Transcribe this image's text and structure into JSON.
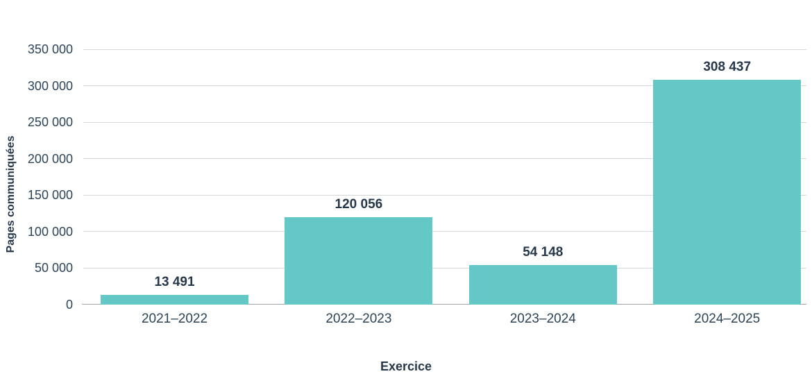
{
  "chart_data": {
    "type": "bar",
    "title": "",
    "categories": [
      "2021–2022",
      "2022–2023",
      "2023–2024",
      "2024–2025"
    ],
    "values": [
      13491,
      120056,
      54148,
      308437
    ],
    "value_labels": [
      "13 491",
      "120 056",
      "54 148",
      "308 437"
    ],
    "xlabel": "Exercice",
    "ylabel": "Pages communiquées",
    "ylim": [
      0,
      350000
    ],
    "ytick_step": 50000,
    "ytick_labels": [
      "0",
      "50 000",
      "100 000",
      "150 000",
      "200 000",
      "250 000",
      "300 000",
      "350 000"
    ],
    "grid": "horizontal",
    "legend": "none",
    "colors": {
      "bar": "#64C8C7",
      "bold_text": "#26374A",
      "tick_text": "#2C4356",
      "gridline": "#D6D6D9",
      "axis_line": "#A3A3A8",
      "background": "#FFFFFF"
    }
  }
}
